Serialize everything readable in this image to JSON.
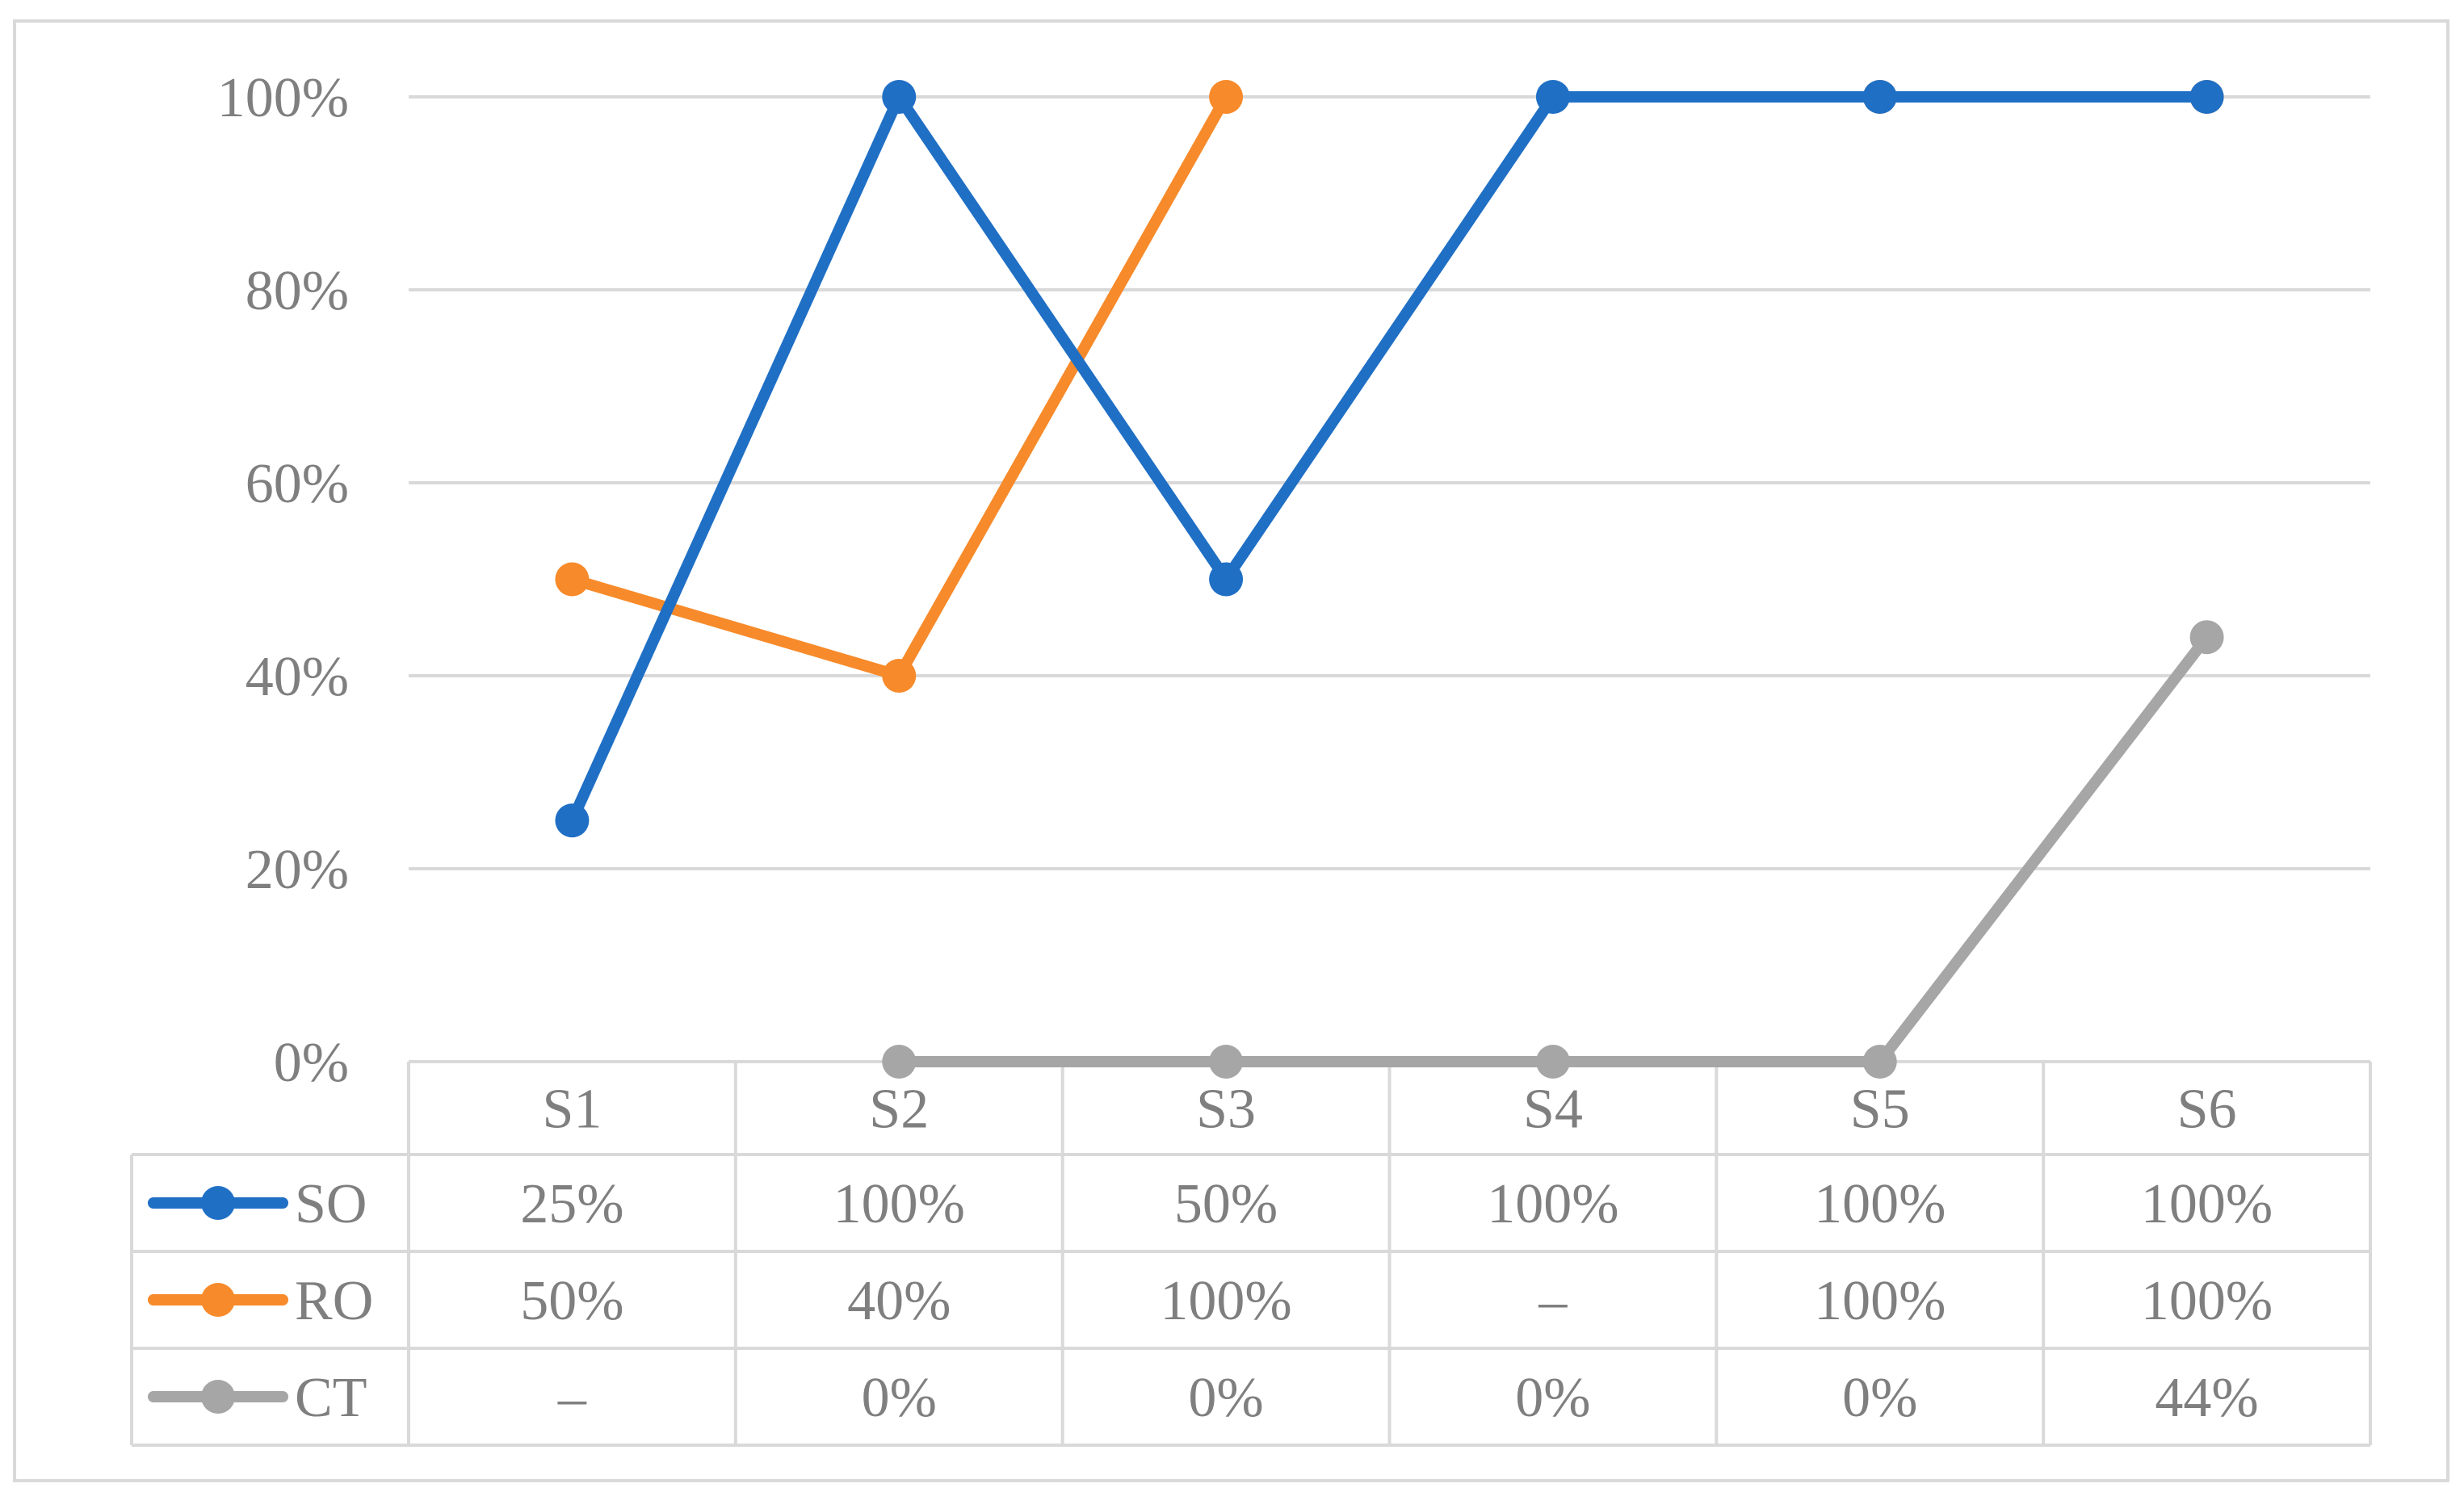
{
  "chart_data": {
    "type": "line",
    "categories": [
      "S1",
      "S2",
      "S3",
      "S4",
      "S5",
      "S6"
    ],
    "ylim": [
      0,
      100
    ],
    "yticks": [
      "0%",
      "20%",
      "40%",
      "60%",
      "80%",
      "100%"
    ],
    "grid": true,
    "legend": "data-table",
    "series": [
      {
        "name": "SO",
        "color": "#1f6fc5",
        "values": [
          25,
          100,
          50,
          100,
          100,
          100
        ],
        "labels": [
          "25%",
          "100%",
          "50%",
          "100%",
          "100%",
          "100%"
        ]
      },
      {
        "name": "RO",
        "color": "#f78a2a",
        "values": [
          50,
          40,
          100,
          null,
          100,
          100
        ],
        "labels": [
          "50%",
          "40%",
          "100%",
          "–",
          "100%",
          "100%"
        ]
      },
      {
        "name": "CT",
        "color": "#a6a6a6",
        "values": [
          null,
          0,
          0,
          0,
          0,
          44
        ],
        "labels": [
          "–",
          "0%",
          "0%",
          "0%",
          "0%",
          "44%"
        ]
      }
    ]
  }
}
